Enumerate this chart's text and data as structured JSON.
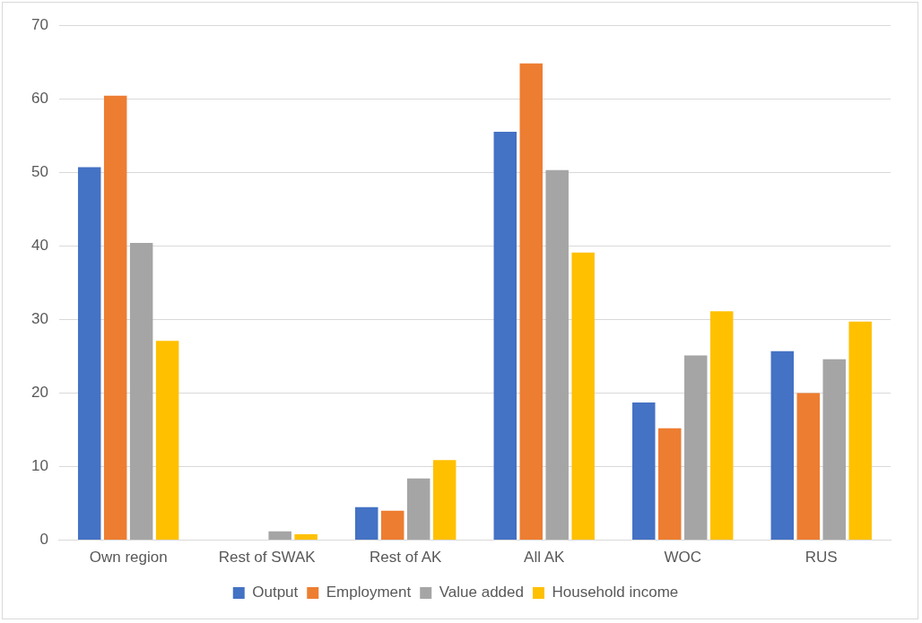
{
  "chart_data": {
    "type": "bar",
    "categories": [
      "Own region",
      "Rest of SWAK",
      "Rest of AK",
      "All AK",
      "WOC",
      "RUS"
    ],
    "series": [
      {
        "name": "Output",
        "color": "#4472c4",
        "values": [
          50.7,
          0,
          4.5,
          55.5,
          18.7,
          25.7
        ]
      },
      {
        "name": "Employment",
        "color": "#ed7d31",
        "values": [
          60.4,
          0,
          4.0,
          64.8,
          15.2,
          20.0
        ]
      },
      {
        "name": "Value added",
        "color": "#a5a5a5",
        "values": [
          40.4,
          1.2,
          8.4,
          50.3,
          25.1,
          24.6
        ]
      },
      {
        "name": "Household income",
        "color": "#ffc000",
        "values": [
          27.1,
          0.8,
          10.9,
          39.1,
          31.1,
          29.7
        ]
      }
    ],
    "ylim": [
      0,
      70
    ],
    "yticks": [
      0,
      10,
      20,
      30,
      40,
      50,
      60,
      70
    ],
    "grid": "y",
    "legend": "bottom"
  }
}
